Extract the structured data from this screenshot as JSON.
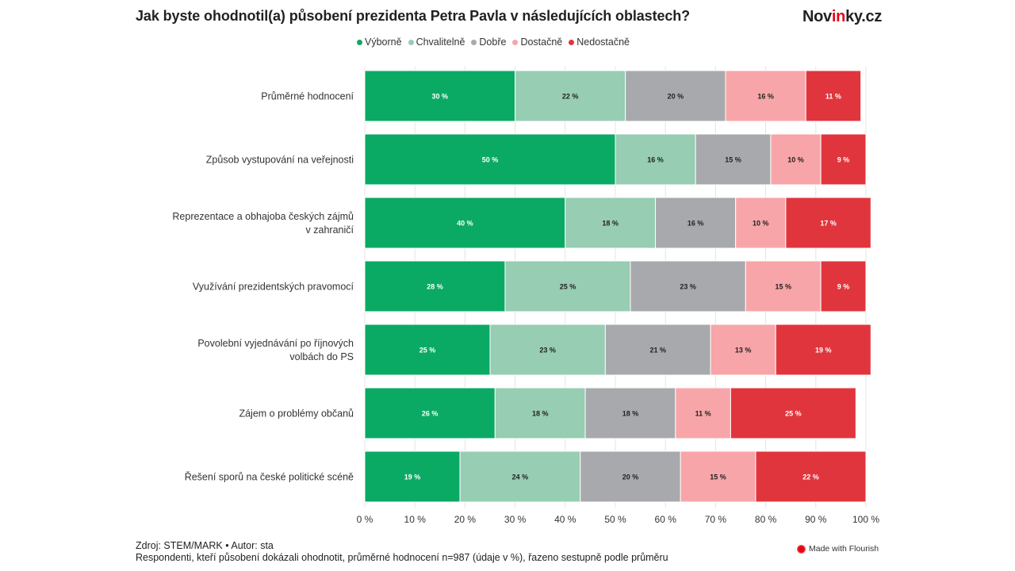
{
  "header": {
    "title": "Jak byste ohodnotil(a) působení prezidenta Petra Pavla v následujících oblastech?",
    "brand_pre": "Nov",
    "brand_accent": "in",
    "brand_post": "ky.cz"
  },
  "legend": [
    {
      "label": "Výborně",
      "color": "#0aaa64"
    },
    {
      "label": "Chvalitelně",
      "color": "#96cdb3"
    },
    {
      "label": "Dobře",
      "color": "#a7a9ac"
    },
    {
      "label": "Dostačně",
      "color": "#f7a5a8"
    },
    {
      "label": "Nedostačně",
      "color": "#e1353d"
    }
  ],
  "chart_data": {
    "type": "bar",
    "orientation": "horizontal",
    "stacked": true,
    "categories": [
      "Průměrné hodnocení",
      "Způsob vystupování na veřejnosti",
      "Reprezentace a obhajoba českých zájmů v zahraničí",
      "Využívání prezidentských pravomocí",
      "Povolební vyjednávání po říjnových volbách do PS",
      "Zájem o problémy občanů",
      "Řešení sporů na české politické scéně"
    ],
    "series": [
      {
        "name": "Výborně",
        "color": "#0aaa64",
        "label_color": "#ffffff",
        "values": [
          30,
          50,
          40,
          28,
          25,
          26,
          19
        ]
      },
      {
        "name": "Chvalitelně",
        "color": "#96cdb3",
        "label_color": "#222222",
        "values": [
          22,
          16,
          18,
          25,
          23,
          18,
          24
        ]
      },
      {
        "name": "Dobře",
        "color": "#a7a9ac",
        "label_color": "#222222",
        "values": [
          20,
          15,
          16,
          23,
          21,
          18,
          20
        ]
      },
      {
        "name": "Dostačně",
        "color": "#f7a5a8",
        "label_color": "#222222",
        "values": [
          16,
          10,
          10,
          15,
          13,
          11,
          15
        ]
      },
      {
        "name": "Nedostačně",
        "color": "#e1353d",
        "label_color": "#ffffff",
        "values": [
          11,
          9,
          17,
          9,
          19,
          25,
          22
        ]
      }
    ],
    "value_suffix": " %",
    "xlim": [
      0,
      100
    ],
    "xticks": [
      0,
      10,
      20,
      30,
      40,
      50,
      60,
      70,
      80,
      90,
      100
    ],
    "xtick_labels": [
      "0 %",
      "10 %",
      "20 %",
      "30 %",
      "40 %",
      "50 %",
      "60 %",
      "70 %",
      "80 %",
      "90 %",
      "100 %"
    ],
    "grid": true,
    "legend_position": "top"
  },
  "footer": {
    "source": "Zdroj: STEM/MARK • Autor: sta",
    "note": "Respondenti, kteří působení dokázali ohodnotit, průměrné hodnocení n=987 (údaje v %), řazeno sestupně podle průměru",
    "flourish": "Made with Flourish"
  }
}
